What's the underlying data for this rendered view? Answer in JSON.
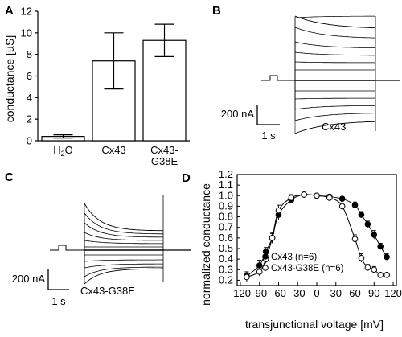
{
  "panels": {
    "A": "A",
    "B": "B",
    "C": "C",
    "D": "D"
  },
  "chart_data": [
    {
      "type": "bar",
      "panel": "A",
      "title": "",
      "ylabel": "conductance [µS]",
      "xlabel": "",
      "categories": [
        "H2O",
        "Cx43",
        "Cx43-G38E"
      ],
      "category_display": [
        {
          "main": "H",
          "sub": "2",
          "rest": "O"
        },
        {
          "line1": "Cx43"
        },
        {
          "line1": "Cx43-",
          "line2": "G38E"
        }
      ],
      "values": [
        0.4,
        7.4,
        9.3
      ],
      "errors": [
        0.15,
        2.6,
        1.5
      ],
      "ylim": [
        0,
        12
      ],
      "yticks": [
        0,
        2,
        4,
        6,
        8,
        10,
        12
      ]
    },
    {
      "type": "line",
      "panel": "B",
      "description_label": "Cx43",
      "scale_bar": {
        "current": "200 nA",
        "time": "1 s"
      }
    },
    {
      "type": "line",
      "panel": "C",
      "description_label": "Cx43-G38E",
      "scale_bar": {
        "current": "200 nA",
        "time": "1 s"
      }
    },
    {
      "type": "scatter",
      "panel": "D",
      "xlabel": "transjunctional voltage [mV]",
      "ylabel": "normalized conductance",
      "xlim": [
        -125,
        125
      ],
      "ylim": [
        0.15,
        1.2
      ],
      "xticks": [
        -120,
        -90,
        -60,
        -30,
        0,
        30,
        60,
        90,
        120
      ],
      "yticks": [
        0.2,
        0.3,
        0.4,
        0.5,
        0.6,
        0.7,
        0.8,
        0.9,
        1.0,
        1.1,
        1.2
      ],
      "ytick_labels": [
        "0.2",
        "0.3",
        "0.4",
        "0.5",
        "0.6",
        "0.7",
        "0.8",
        "0.9",
        "1.0",
        "1.1",
        "1.2"
      ],
      "legend_position": "bottom-right",
      "series": [
        {
          "name": "Cx43 (n=6)",
          "marker": "filled-circle",
          "x": [
            -110,
            -90,
            -80,
            -70,
            -60,
            -40,
            -20,
            0,
            20,
            40,
            60,
            70,
            80,
            90,
            100,
            110
          ],
          "y": [
            0.24,
            0.34,
            0.47,
            0.6,
            0.82,
            0.96,
            1.01,
            1.0,
            0.99,
            0.97,
            0.91,
            0.82,
            0.73,
            0.63,
            0.52,
            0.42
          ],
          "err": [
            0.04,
            0.05,
            0.04,
            0.05,
            0.05,
            0.03,
            0.02,
            0.01,
            0.02,
            0.02,
            0.03,
            0.03,
            0.03,
            0.04,
            0.03,
            0.03
          ]
        },
        {
          "name": "Cx43-G38E (n=6)",
          "marker": "open-circle",
          "x": [
            -110,
            -90,
            -80,
            -70,
            -60,
            -40,
            -20,
            0,
            20,
            40,
            60,
            70,
            80,
            90,
            100,
            110
          ],
          "y": [
            0.23,
            0.28,
            0.4,
            0.6,
            0.86,
            0.98,
            1.01,
            1.0,
            0.98,
            0.9,
            0.59,
            0.41,
            0.32,
            0.3,
            0.25,
            0.25
          ],
          "err": [
            0.05,
            0.04,
            0.04,
            0.04,
            0.05,
            0.03,
            0.02,
            0.01,
            0.02,
            0.03,
            0.04,
            0.04,
            0.03,
            0.03,
            0.02,
            0.02
          ]
        }
      ]
    }
  ]
}
